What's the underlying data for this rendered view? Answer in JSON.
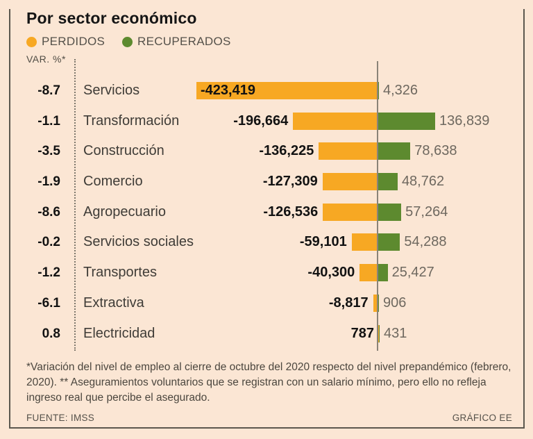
{
  "title": "Por sector económico",
  "legend": [
    {
      "label": "PERDIDOS",
      "color": "#f7a823"
    },
    {
      "label": "RECUPERADOS",
      "color": "#5d8a2f"
    }
  ],
  "var_header": "VAR. %*",
  "chart_data": {
    "type": "bar",
    "orientation": "horizontal-diverging",
    "title": "Por sector económico",
    "categories": [
      "Servicios",
      "Transformación",
      "Construcción",
      "Comercio",
      "Agropecuario",
      "Servicios sociales",
      "Transportes",
      "Extractiva",
      "Electricidad"
    ],
    "var_pct_labels": [
      "-8.7",
      "-1.1",
      "-3.5",
      "-1.9",
      "-8.6",
      "-0.2",
      "-1.2",
      "-6.1",
      "0.8"
    ],
    "series": [
      {
        "name": "PERDIDOS",
        "color": "#f7a823",
        "values": [
          -423419,
          -196664,
          -136225,
          -127309,
          -126536,
          -59101,
          -40300,
          -8817,
          787
        ],
        "labels": [
          "-423,419",
          "-196,664",
          "-136,225",
          "-127,309",
          "-126,536",
          "-59,101",
          "-40,300",
          "-8,817",
          "787"
        ]
      },
      {
        "name": "RECUPERADOS",
        "color": "#5d8a2f",
        "values": [
          4326,
          136839,
          78638,
          48762,
          57264,
          54288,
          25427,
          906,
          431
        ],
        "labels": [
          "4,326",
          "136,839",
          "78,638",
          "48,762",
          "57,264",
          "54,288",
          "25,427",
          "906",
          "431"
        ]
      }
    ],
    "legend_position": "top",
    "grid": false,
    "zero_axis": true
  },
  "footnote": "*Variación del nivel de empleo al cierre de octubre del 2020 respecto del nivel prepandémico (febrero, 2020). ** Aseguramientos voluntarios que se registran con un salario mínimo, pero ello no refleja ingreso real que percibe el asegurado.",
  "source": "FUENTE: IMSS",
  "credit": "GRÁFICO EE"
}
